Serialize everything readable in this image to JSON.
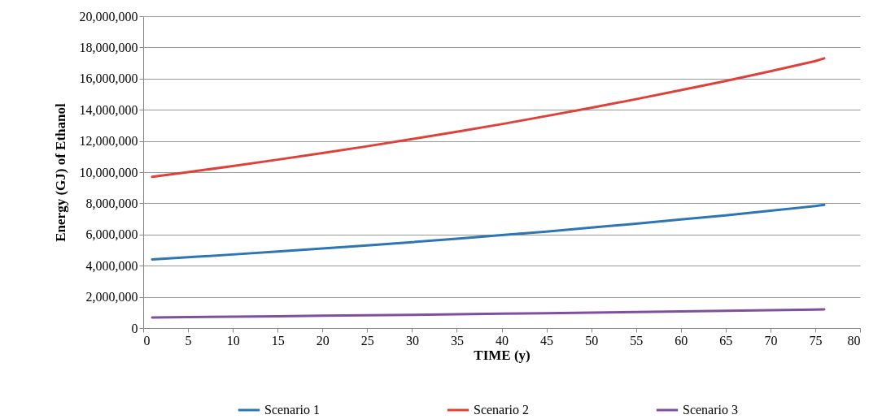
{
  "chart_data": {
    "type": "line",
    "xlabel": "TIME  (y)",
    "ylabel": "Energy (GJ) of Ethanol",
    "x": [
      1,
      5,
      10,
      15,
      20,
      25,
      30,
      35,
      40,
      45,
      50,
      55,
      60,
      65,
      70,
      75,
      76
    ],
    "series": [
      {
        "name": "Scenario 1",
        "color": "#2e75b6",
        "values": [
          4400000,
          4540000,
          4720000,
          4910000,
          5100000,
          5300000,
          5510000,
          5730000,
          5960000,
          6190000,
          6440000,
          6690000,
          6960000,
          7230000,
          7520000,
          7820000,
          7900000
        ]
      },
      {
        "name": "Scenario 2",
        "color": "#e0403a",
        "values": [
          9700000,
          10000000,
          10390000,
          10800000,
          11220000,
          11660000,
          12120000,
          12590000,
          13080000,
          13600000,
          14130000,
          14680000,
          15260000,
          15850000,
          16470000,
          17120000,
          17300000
        ]
      },
      {
        "name": "Scenario 3",
        "color": "#8050a0",
        "values": [
          680000,
          700000,
          730000,
          760000,
          790000,
          820000,
          850000,
          880000,
          920000,
          950000,
          990000,
          1030000,
          1070000,
          1110000,
          1150000,
          1190000,
          1200000
        ]
      }
    ],
    "xlim": [
      0,
      80
    ],
    "xticks": [
      0,
      5,
      10,
      15,
      20,
      25,
      30,
      35,
      40,
      45,
      50,
      55,
      60,
      65,
      70,
      75,
      80
    ],
    "ylim": [
      0,
      20000000
    ],
    "yticks": [
      0,
      {
        "value": 2000000,
        "label": "2,000,000"
      },
      {
        "value": 4000000,
        "label": "4,000,000"
      },
      {
        "value": 6000000,
        "label": "6,000,000"
      },
      {
        "value": 8000000,
        "label": "8,000,000"
      },
      {
        "value": 10000000,
        "label": "10,000,000"
      },
      {
        "value": 12000000,
        "label": "12,000,000"
      },
      {
        "value": 14000000,
        "label": "14,000,000"
      },
      {
        "value": 16000000,
        "label": "16,000,000"
      },
      {
        "value": 18000000,
        "label": "18,000,000"
      },
      {
        "value": 20000000,
        "label": "20,000,000"
      }
    ],
    "grid": "y",
    "legend": "bottom",
    "marker": "none",
    "line_style": "solid"
  }
}
